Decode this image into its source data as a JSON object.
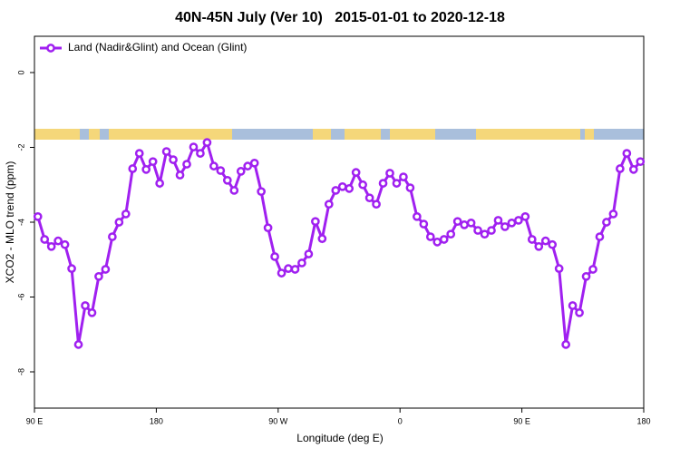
{
  "chart_data": {
    "type": "line",
    "title": "40N-45N July (Ver 10)   2015-01-01 to 2020-12-18",
    "x_label": "Longitude (deg E)",
    "y_label": "XCO2 - MLO trend (ppm)",
    "legend": "top-left",
    "x": [
      92.5,
      97.5,
      102.5,
      107.5,
      112.5,
      117.5,
      122.5,
      127.5,
      132.5,
      137.5,
      142.5,
      147.5,
      152.5,
      157.5,
      162.5,
      167.5,
      172.5,
      177.5,
      182.5,
      187.5,
      192.5,
      197.5,
      202.5,
      207.5,
      212.5,
      217.5,
      222.5,
      227.5,
      232.5,
      237.5,
      242.5,
      247.5,
      252.5,
      257.5,
      262.5,
      267.5,
      272.5,
      277.5,
      282.5,
      287.5,
      292.5,
      297.5,
      302.5,
      307.5,
      312.5,
      317.5,
      322.5,
      327.5,
      332.5,
      337.5,
      342.5,
      347.5,
      352.5,
      357.5,
      362.5,
      367.5,
      372.5,
      377.5,
      382.5,
      387.5,
      392.5,
      397.5,
      402.5,
      407.5,
      412.5,
      417.5,
      422.5,
      427.5,
      432.5,
      437.5,
      442.5,
      447.5,
      452.5,
      457.5,
      462.5,
      467.5,
      472.5,
      477.5,
      482.5,
      487.5,
      492.5,
      497.5,
      502.5,
      507.5,
      512.5,
      517.5,
      522.5,
      527.5,
      532.5,
      537.5
    ],
    "series": [
      {
        "name": "Land (Nadir&Glint) and Ocean (Glint)",
        "color": "#a020f0",
        "values": [
          -3.85,
          -4.46,
          -4.65,
          -4.5,
          -4.6,
          -5.24,
          -7.27,
          -6.23,
          -6.42,
          -5.45,
          -5.26,
          -4.39,
          -4.0,
          -3.78,
          -2.57,
          -2.16,
          -2.59,
          -2.38,
          -2.96,
          -2.11,
          -2.33,
          -2.74,
          -2.45,
          -1.99,
          -2.16,
          -1.87,
          -2.5,
          -2.62,
          -2.88,
          -3.15,
          -2.64,
          -2.5,
          -2.42,
          -3.18,
          -4.15,
          -4.92,
          -5.36,
          -5.24,
          -5.26,
          -5.09,
          -4.85,
          -3.98,
          -4.44,
          -3.52,
          -3.15,
          -3.05,
          -3.1,
          -2.67,
          -3.0,
          -3.35,
          -3.52,
          -2.96,
          -2.69,
          -2.96,
          -2.79,
          -3.08,
          -3.85,
          -4.05,
          -4.39,
          -4.53,
          -4.46,
          -4.32,
          -3.98,
          -4.07,
          -4.02,
          -4.22,
          -4.32,
          -4.22,
          -3.95,
          -4.12,
          -4.02,
          -3.95,
          -3.85,
          -4.46,
          -4.65,
          -4.5,
          -4.6,
          -5.24,
          -7.27,
          -6.23,
          -6.42,
          -5.45,
          -5.26,
          -4.39,
          -4.0,
          -3.78,
          -2.57,
          -2.16,
          -2.59,
          -2.38
        ]
      }
    ],
    "xlim": [
      90,
      540
    ],
    "xticks": [
      {
        "value": 90,
        "label": "90 E"
      },
      {
        "value": 180,
        "label": "180"
      },
      {
        "value": 270,
        "label": "90 W"
      },
      {
        "value": 360,
        "label": "0"
      },
      {
        "value": 450,
        "label": "90 E"
      },
      {
        "value": 540,
        "label": "180"
      }
    ],
    "ylim": [
      -8.97,
      0.97
    ],
    "yticks": [
      0,
      -2,
      -4,
      -6,
      -8
    ]
  }
}
